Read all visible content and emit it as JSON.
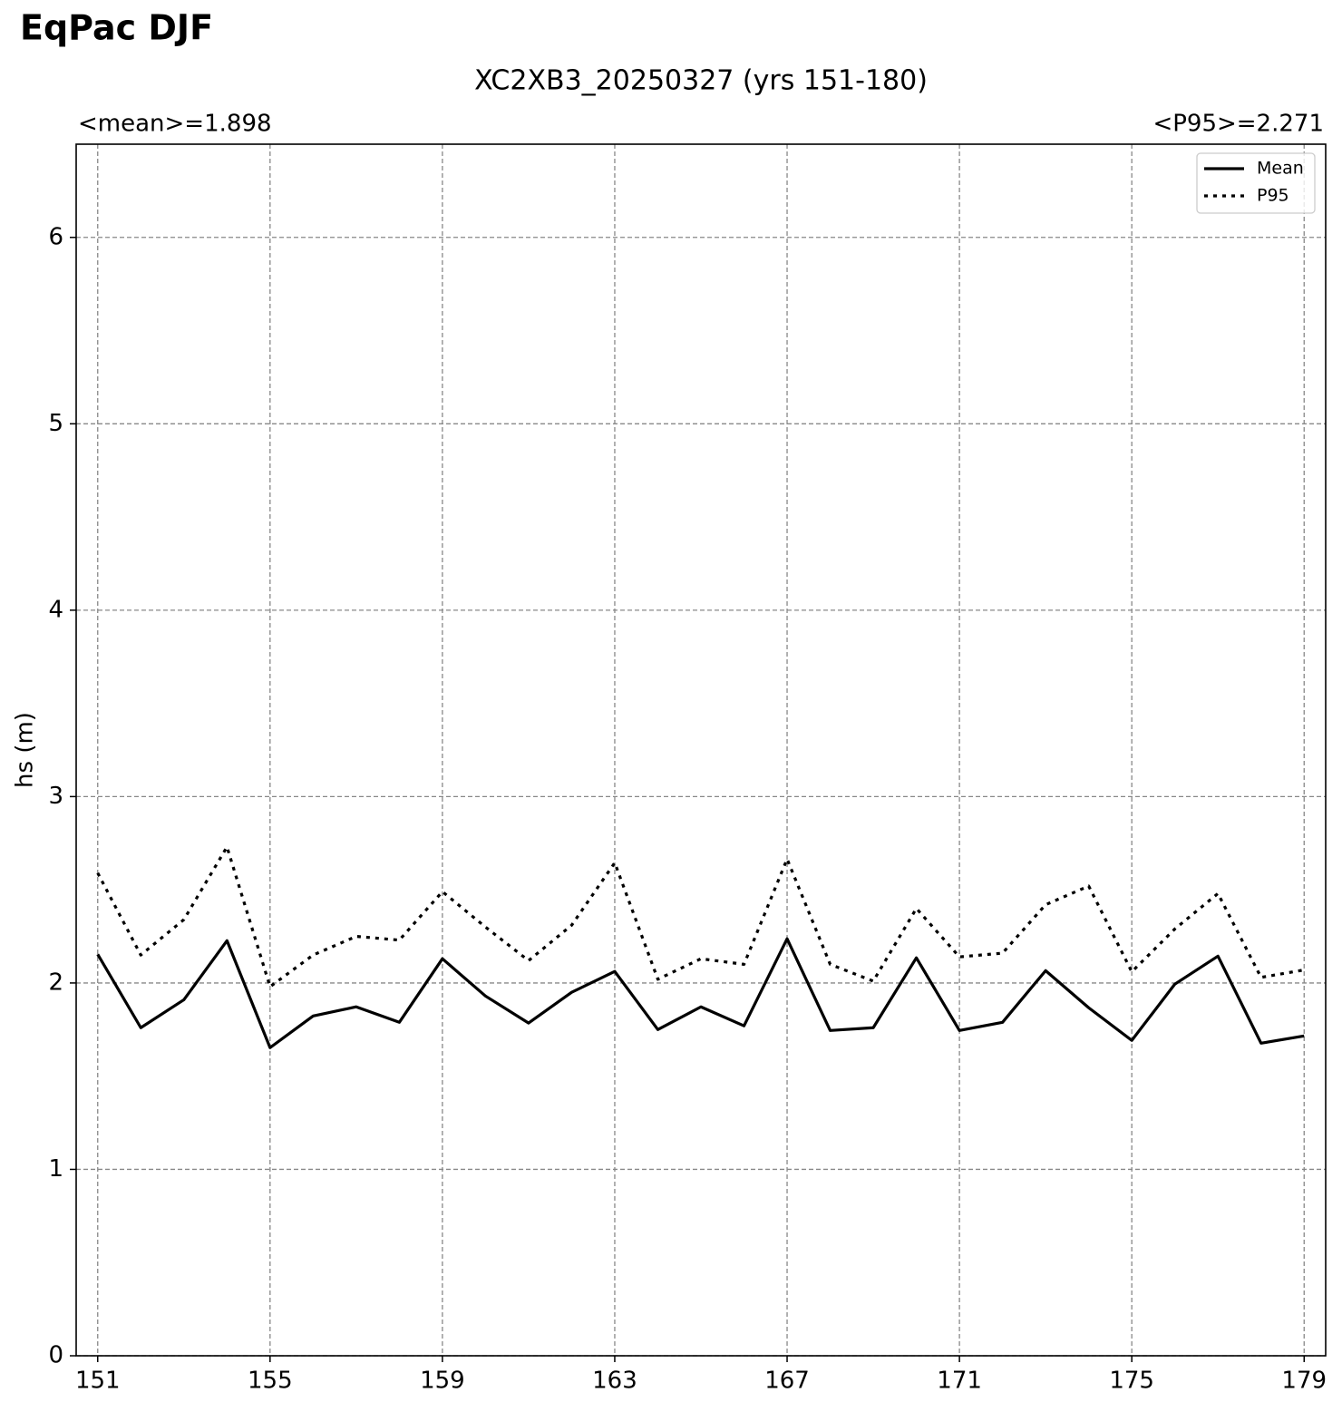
{
  "chart_data": {
    "type": "line",
    "suptitle": "EqPac DJF",
    "title": "XC2XB3_20250327 (yrs 151-180)",
    "left_title": "<mean>=1.898",
    "right_title": "<P95>=2.271",
    "ylabel": "hs (m)",
    "x": [
      151,
      152,
      153,
      154,
      155,
      156,
      157,
      158,
      159,
      160,
      161,
      162,
      163,
      164,
      165,
      166,
      167,
      168,
      169,
      170,
      171,
      172,
      173,
      174,
      175,
      176,
      177,
      178,
      179
    ],
    "series": [
      {
        "name": "Mean",
        "color": "#000000",
        "linestyle": "solid",
        "values": [
          2.154,
          1.76,
          1.91,
          2.227,
          1.653,
          1.823,
          1.872,
          1.789,
          2.13,
          1.93,
          1.785,
          1.95,
          2.062,
          1.75,
          1.872,
          1.77,
          2.237,
          1.745,
          1.76,
          2.135,
          1.745,
          1.789,
          2.066,
          1.867,
          1.692,
          1.994,
          2.144,
          1.677,
          1.716
        ]
      },
      {
        "name": "P95",
        "color": "#000000",
        "linestyle": "dotted",
        "values": [
          2.59,
          2.15,
          2.34,
          2.73,
          1.98,
          2.15,
          2.25,
          2.23,
          2.49,
          2.3,
          2.12,
          2.31,
          2.645,
          2.02,
          2.13,
          2.1,
          2.665,
          2.1,
          2.01,
          2.4,
          2.14,
          2.16,
          2.42,
          2.52,
          2.06,
          2.29,
          2.48,
          2.03,
          2.07
        ]
      }
    ],
    "xlim": [
      150.5,
      179.5
    ],
    "xticks": [
      151,
      155,
      159,
      163,
      167,
      171,
      175,
      179
    ],
    "ylim": [
      0,
      6.5
    ],
    "yticks": [
      0,
      1,
      2,
      3,
      4,
      5,
      6
    ],
    "grid": true,
    "legend_loc": "upper right"
  }
}
